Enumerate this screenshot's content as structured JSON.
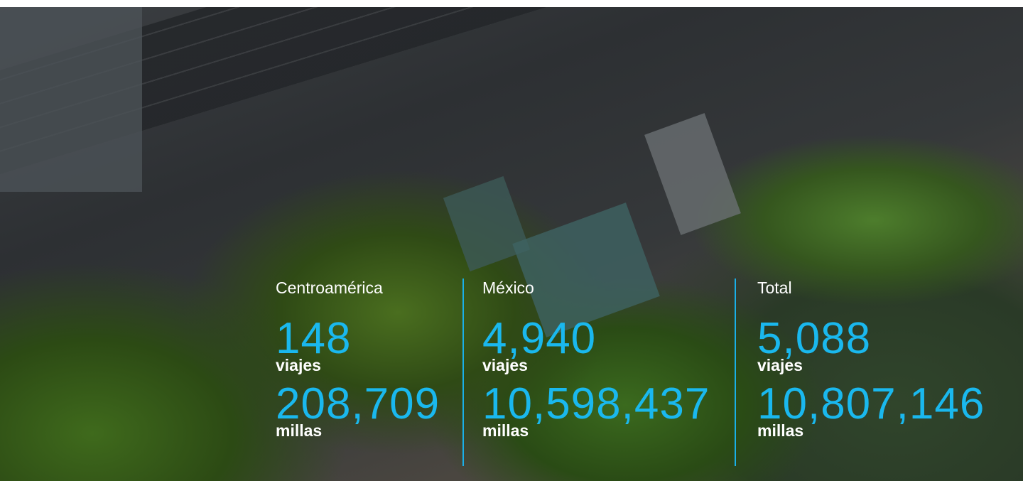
{
  "stats": [
    {
      "region": "Centroamérica",
      "trips": "148",
      "trips_unit": "viajes",
      "miles": "208,709",
      "miles_unit": "millas"
    },
    {
      "region": "México",
      "trips": "4,940",
      "trips_unit": "viajes",
      "miles": "10,598,437",
      "miles_unit": "millas"
    },
    {
      "region": "Total",
      "trips": "5,088",
      "trips_unit": "viajes",
      "miles": "10,807,146",
      "miles_unit": "millas"
    }
  ]
}
